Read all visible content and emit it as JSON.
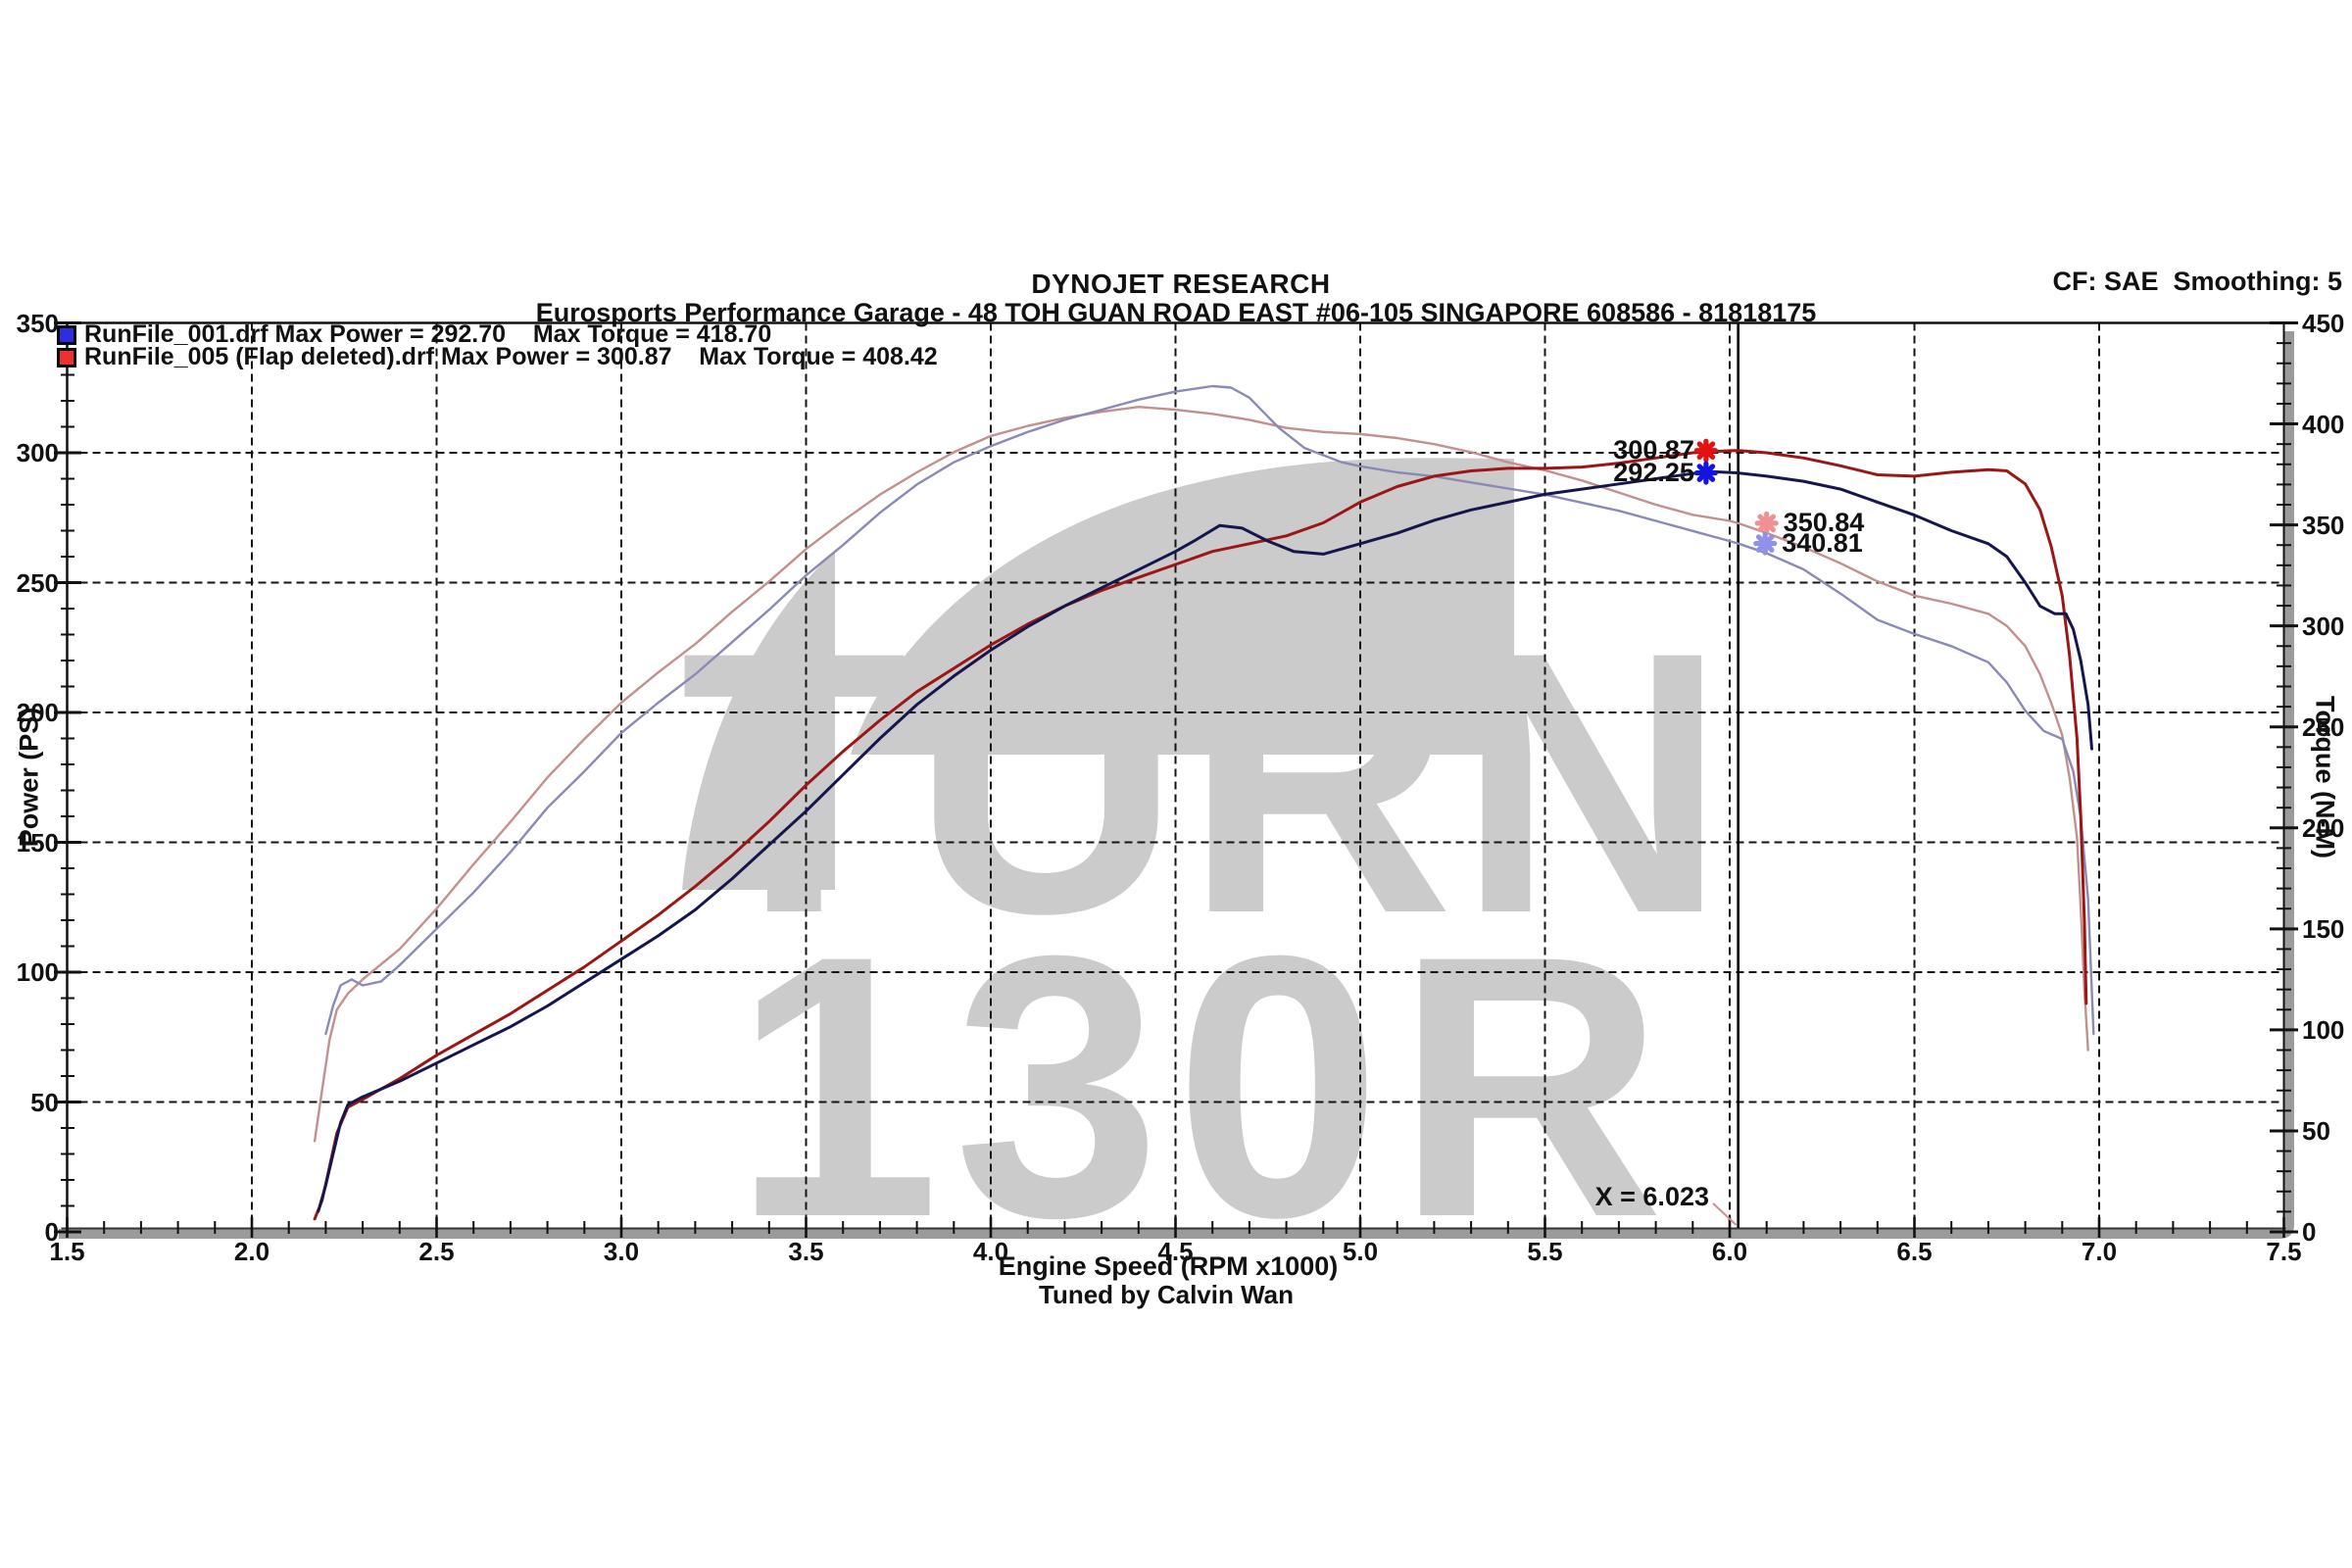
{
  "header": {
    "title": "DYNOJET RESEARCH",
    "subtitle": "Eurosports Performance Garage - 48 TOH GUAN ROAD EAST #06-105 SINGAPORE 608586 - 81818175",
    "correction_info": "CF: SAE  Smoothing: 5"
  },
  "legend": {
    "items": [
      {
        "run_label": "RunFile_001.drf Max Power = 292.70    Max Torque = 418.70",
        "swatch_color": "#2e2ee0"
      },
      {
        "run_label": "RunFile_005 (Flap deleted).drf Max Power = 300.87    Max Torque = 408.42",
        "swatch_color": "#ee3030"
      }
    ]
  },
  "watermark": {
    "line1": "TURN",
    "line2": "130R",
    "color": "#cbcbcb"
  },
  "footer": {
    "x_axis_label": "Engine Speed (RPM x1000)",
    "tuned_by": "Tuned by Calvin Wan"
  },
  "cursor": {
    "label": "X = 6.023",
    "x": 6.023
  },
  "chart_data": {
    "type": "line",
    "grid": "dashed",
    "x_axis": {
      "label": "Engine Speed (RPM x1000)",
      "min": 1.5,
      "max": 7.5,
      "major_step": 0.5,
      "minor_step": 0.1,
      "tick_labels": [
        "1.5",
        "2.0",
        "2.5",
        "3.0",
        "3.5",
        "4.0",
        "4.5",
        "5.0",
        "5.5",
        "6.0",
        "6.5",
        "7.0",
        "7.5"
      ]
    },
    "y_left": {
      "label": "Power (PS)",
      "min": 0,
      "max": 350,
      "major_step": 50,
      "minor_step": 10,
      "tick_labels": [
        "0",
        "50",
        "100",
        "150",
        "200",
        "250",
        "300",
        "350"
      ]
    },
    "y_right": {
      "label": "Torque (N-M)",
      "min": 0,
      "max": 450,
      "major_step": 50,
      "minor_step": 10,
      "tick_labels": [
        "0",
        "50",
        "100",
        "150",
        "200",
        "250",
        "300",
        "350",
        "400",
        "450"
      ]
    },
    "cursor_x": 6.023,
    "series": [
      {
        "id": "torque_run005",
        "name": "RunFile_005 Torque",
        "axis": "right",
        "color": "#c48f8f",
        "width": 2.4,
        "max_value": 408.42,
        "points": [
          [
            2.17,
            45
          ],
          [
            2.19,
            70
          ],
          [
            2.21,
            95
          ],
          [
            2.23,
            110
          ],
          [
            2.26,
            118
          ],
          [
            2.3,
            125
          ],
          [
            2.4,
            140
          ],
          [
            2.5,
            160
          ],
          [
            2.6,
            182
          ],
          [
            2.7,
            203
          ],
          [
            2.8,
            225
          ],
          [
            2.9,
            244
          ],
          [
            3.0,
            262
          ],
          [
            3.1,
            277
          ],
          [
            3.2,
            291
          ],
          [
            3.3,
            307
          ],
          [
            3.4,
            322
          ],
          [
            3.5,
            338
          ],
          [
            3.6,
            352
          ],
          [
            3.7,
            365
          ],
          [
            3.8,
            376
          ],
          [
            3.9,
            386
          ],
          [
            4.0,
            394
          ],
          [
            4.1,
            399
          ],
          [
            4.2,
            403
          ],
          [
            4.3,
            406
          ],
          [
            4.4,
            408.4
          ],
          [
            4.5,
            407
          ],
          [
            4.6,
            405
          ],
          [
            4.7,
            402
          ],
          [
            4.8,
            398
          ],
          [
            4.9,
            396
          ],
          [
            5.0,
            395
          ],
          [
            5.1,
            393
          ],
          [
            5.2,
            390
          ],
          [
            5.3,
            386
          ],
          [
            5.4,
            381
          ],
          [
            5.5,
            377
          ],
          [
            5.6,
            372
          ],
          [
            5.7,
            366
          ],
          [
            5.8,
            360
          ],
          [
            5.9,
            355
          ],
          [
            6.0,
            352
          ],
          [
            6.023,
            350.84
          ],
          [
            6.1,
            346
          ],
          [
            6.2,
            339
          ],
          [
            6.3,
            331
          ],
          [
            6.4,
            322
          ],
          [
            6.5,
            315
          ],
          [
            6.6,
            311
          ],
          [
            6.7,
            306
          ],
          [
            6.75,
            300
          ],
          [
            6.8,
            290
          ],
          [
            6.84,
            276
          ],
          [
            6.87,
            262
          ],
          [
            6.9,
            246
          ],
          [
            6.92,
            225
          ],
          [
            6.94,
            195
          ],
          [
            6.95,
            160
          ],
          [
            6.96,
            120
          ],
          [
            6.97,
            90
          ]
        ]
      },
      {
        "id": "torque_run001",
        "name": "RunFile_001 Torque",
        "axis": "right",
        "color": "#8a8ab8",
        "width": 2.4,
        "max_value": 418.7,
        "points": [
          [
            2.2,
            98
          ],
          [
            2.22,
            112
          ],
          [
            2.24,
            122
          ],
          [
            2.27,
            125
          ],
          [
            2.3,
            122
          ],
          [
            2.35,
            124
          ],
          [
            2.4,
            132
          ],
          [
            2.5,
            150
          ],
          [
            2.6,
            168
          ],
          [
            2.7,
            188
          ],
          [
            2.8,
            210
          ],
          [
            2.9,
            228
          ],
          [
            3.0,
            247
          ],
          [
            3.1,
            262
          ],
          [
            3.2,
            276
          ],
          [
            3.3,
            292
          ],
          [
            3.4,
            308
          ],
          [
            3.5,
            325
          ],
          [
            3.6,
            340
          ],
          [
            3.7,
            356
          ],
          [
            3.8,
            370
          ],
          [
            3.9,
            381
          ],
          [
            4.0,
            389
          ],
          [
            4.1,
            396
          ],
          [
            4.2,
            402
          ],
          [
            4.3,
            407
          ],
          [
            4.4,
            412
          ],
          [
            4.5,
            416
          ],
          [
            4.6,
            418.7
          ],
          [
            4.65,
            418
          ],
          [
            4.7,
            413
          ],
          [
            4.78,
            398
          ],
          [
            4.85,
            388
          ],
          [
            4.95,
            381
          ],
          [
            5.0,
            379
          ],
          [
            5.1,
            376
          ],
          [
            5.2,
            374
          ],
          [
            5.3,
            371
          ],
          [
            5.4,
            368
          ],
          [
            5.5,
            365
          ],
          [
            5.6,
            361
          ],
          [
            5.7,
            357
          ],
          [
            5.8,
            352
          ],
          [
            5.9,
            347
          ],
          [
            6.0,
            342
          ],
          [
            6.023,
            340.81
          ],
          [
            6.1,
            336
          ],
          [
            6.2,
            328
          ],
          [
            6.3,
            316
          ],
          [
            6.4,
            303
          ],
          [
            6.5,
            296
          ],
          [
            6.6,
            290
          ],
          [
            6.7,
            282
          ],
          [
            6.75,
            272
          ],
          [
            6.8,
            258
          ],
          [
            6.85,
            248
          ],
          [
            6.9,
            244
          ],
          [
            6.93,
            228
          ],
          [
            6.95,
            205
          ],
          [
            6.97,
            165
          ],
          [
            6.985,
            98
          ]
        ]
      },
      {
        "id": "power_run005",
        "name": "RunFile_005 Power",
        "axis": "left",
        "color": "#9c1616",
        "width": 3,
        "max_value": 300.87,
        "points": [
          [
            2.17,
            5
          ],
          [
            2.19,
            12
          ],
          [
            2.21,
            25
          ],
          [
            2.23,
            38
          ],
          [
            2.26,
            48
          ],
          [
            2.3,
            51
          ],
          [
            2.4,
            59
          ],
          [
            2.5,
            68
          ],
          [
            2.6,
            76
          ],
          [
            2.7,
            84
          ],
          [
            2.8,
            93
          ],
          [
            2.9,
            102
          ],
          [
            3.0,
            112
          ],
          [
            3.1,
            122
          ],
          [
            3.2,
            133
          ],
          [
            3.3,
            145
          ],
          [
            3.4,
            158
          ],
          [
            3.5,
            172
          ],
          [
            3.6,
            185
          ],
          [
            3.7,
            197
          ],
          [
            3.8,
            208
          ],
          [
            3.9,
            217
          ],
          [
            4.0,
            226
          ],
          [
            4.1,
            234
          ],
          [
            4.2,
            241
          ],
          [
            4.3,
            247
          ],
          [
            4.4,
            252
          ],
          [
            4.5,
            257
          ],
          [
            4.6,
            262
          ],
          [
            4.7,
            265
          ],
          [
            4.8,
            268
          ],
          [
            4.9,
            273
          ],
          [
            5.0,
            281
          ],
          [
            5.1,
            287
          ],
          [
            5.2,
            291
          ],
          [
            5.3,
            293
          ],
          [
            5.4,
            294
          ],
          [
            5.5,
            294
          ],
          [
            5.6,
            294.5
          ],
          [
            5.7,
            296
          ],
          [
            5.8,
            298
          ],
          [
            5.9,
            300
          ],
          [
            6.0,
            300.8
          ],
          [
            6.023,
            300.87
          ],
          [
            6.1,
            300
          ],
          [
            6.2,
            298
          ],
          [
            6.3,
            295
          ],
          [
            6.4,
            291.5
          ],
          [
            6.5,
            291
          ],
          [
            6.6,
            292.5
          ],
          [
            6.7,
            293.5
          ],
          [
            6.75,
            293
          ],
          [
            6.8,
            288
          ],
          [
            6.84,
            278
          ],
          [
            6.87,
            264
          ],
          [
            6.9,
            245
          ],
          [
            6.92,
            222
          ],
          [
            6.94,
            190
          ],
          [
            6.95,
            160
          ],
          [
            6.96,
            120
          ],
          [
            6.965,
            88
          ]
        ]
      },
      {
        "id": "power_run001",
        "name": "RunFile_001 Power",
        "axis": "left",
        "color": "#16164f",
        "width": 3,
        "max_value": 292.7,
        "points": [
          [
            2.18,
            8
          ],
          [
            2.2,
            18
          ],
          [
            2.22,
            30
          ],
          [
            2.24,
            42
          ],
          [
            2.26,
            49
          ],
          [
            2.3,
            52
          ],
          [
            2.35,
            55
          ],
          [
            2.4,
            58
          ],
          [
            2.5,
            65
          ],
          [
            2.6,
            72
          ],
          [
            2.7,
            79
          ],
          [
            2.8,
            87
          ],
          [
            2.9,
            96
          ],
          [
            3.0,
            105
          ],
          [
            3.1,
            114
          ],
          [
            3.2,
            124
          ],
          [
            3.3,
            136
          ],
          [
            3.4,
            149
          ],
          [
            3.5,
            162
          ],
          [
            3.6,
            176
          ],
          [
            3.7,
            190
          ],
          [
            3.8,
            203
          ],
          [
            3.9,
            214
          ],
          [
            4.0,
            224
          ],
          [
            4.1,
            233
          ],
          [
            4.2,
            241
          ],
          [
            4.3,
            248
          ],
          [
            4.4,
            255
          ],
          [
            4.5,
            262
          ],
          [
            4.55,
            266
          ],
          [
            4.62,
            272
          ],
          [
            4.68,
            271
          ],
          [
            4.75,
            266
          ],
          [
            4.82,
            262
          ],
          [
            4.9,
            261
          ],
          [
            5.0,
            265
          ],
          [
            5.1,
            269
          ],
          [
            5.2,
            274
          ],
          [
            5.3,
            278
          ],
          [
            5.4,
            281
          ],
          [
            5.5,
            284
          ],
          [
            5.6,
            286
          ],
          [
            5.7,
            288
          ],
          [
            5.8,
            290
          ],
          [
            5.9,
            292
          ],
          [
            5.95,
            292.7
          ],
          [
            6.02,
            292.25
          ],
          [
            6.1,
            291
          ],
          [
            6.2,
            289
          ],
          [
            6.3,
            286
          ],
          [
            6.4,
            281
          ],
          [
            6.5,
            276
          ],
          [
            6.6,
            270
          ],
          [
            6.7,
            265
          ],
          [
            6.75,
            260
          ],
          [
            6.8,
            250
          ],
          [
            6.84,
            241
          ],
          [
            6.88,
            238
          ],
          [
            6.91,
            238
          ],
          [
            6.93,
            232
          ],
          [
            6.95,
            220
          ],
          [
            6.97,
            203
          ],
          [
            6.98,
            186
          ]
        ]
      }
    ],
    "readouts": [
      {
        "value": "300.87",
        "axis": "left",
        "rpm": 5.936,
        "y": 300.87,
        "color": "#e31212",
        "side": "left"
      },
      {
        "value": "292.25",
        "axis": "left",
        "rpm": 5.936,
        "y": 292.25,
        "color": "#1414e0",
        "side": "left"
      },
      {
        "value": "350.84",
        "axis": "right",
        "rpm": 6.1,
        "y": 350.84,
        "color": "#f19090",
        "side": "right"
      },
      {
        "value": "340.81",
        "axis": "right",
        "rpm": 6.096,
        "y": 340.81,
        "color": "#9191ea",
        "side": "right"
      }
    ]
  }
}
